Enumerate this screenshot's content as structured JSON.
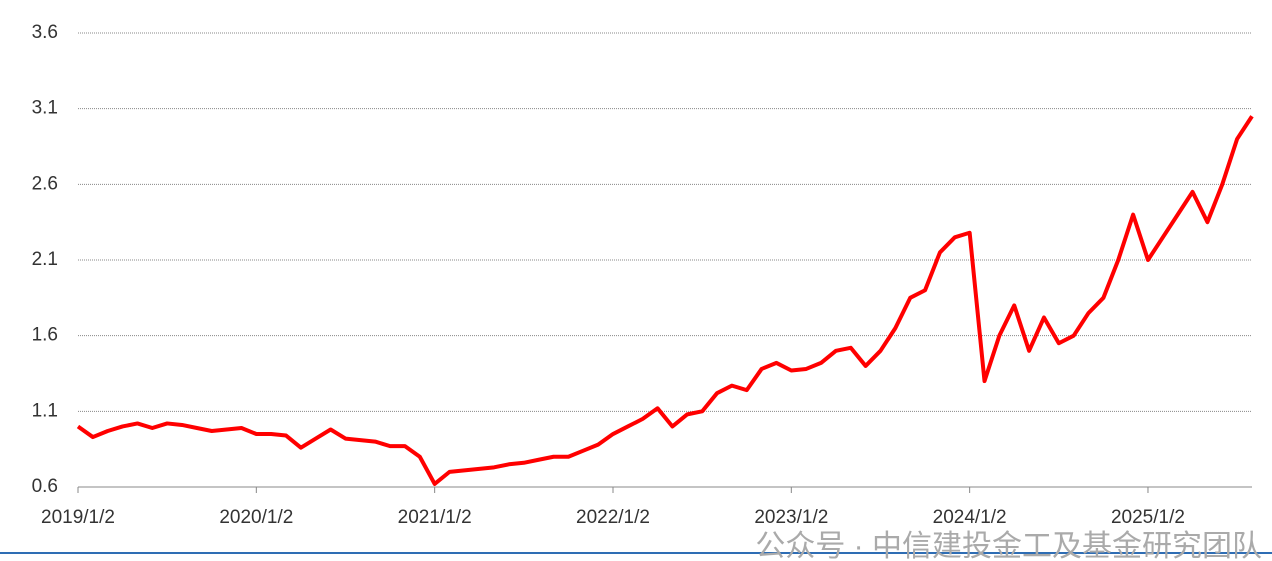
{
  "chart_data": {
    "type": "line",
    "categories": [
      "2019/1/2",
      null,
      null,
      null,
      null,
      null,
      null,
      null,
      null,
      null,
      null,
      null,
      "2020/1/2",
      null,
      null,
      null,
      null,
      null,
      null,
      null,
      null,
      null,
      null,
      null,
      "2021/1/2",
      null,
      null,
      null,
      null,
      null,
      null,
      null,
      null,
      null,
      null,
      null,
      "2022/1/2",
      null,
      null,
      null,
      null,
      null,
      null,
      null,
      null,
      null,
      null,
      null,
      "2023/1/2",
      null,
      null,
      null,
      null,
      null,
      null,
      null,
      null,
      null,
      null,
      null,
      "2024/1/2",
      null,
      null,
      null,
      null,
      null,
      null,
      null,
      null,
      null,
      null,
      null,
      "2025/1/2",
      null,
      null,
      null,
      null,
      null,
      null,
      null
    ],
    "series": [
      {
        "color": "#ff0000",
        "values": [
          1.0,
          0.93,
          0.97,
          1.0,
          1.02,
          0.99,
          1.02,
          1.01,
          0.99,
          0.97,
          0.98,
          0.99,
          0.95,
          0.95,
          0.94,
          0.86,
          0.92,
          0.98,
          0.92,
          0.91,
          0.9,
          0.87,
          0.87,
          0.8,
          0.62,
          0.7,
          0.71,
          0.72,
          0.73,
          0.75,
          0.76,
          0.78,
          0.8,
          0.8,
          0.84,
          0.88,
          0.95,
          1.0,
          1.05,
          1.12,
          1.0,
          1.08,
          1.1,
          1.22,
          1.27,
          1.24,
          1.38,
          1.42,
          1.37,
          1.38,
          1.42,
          1.5,
          1.52,
          1.4,
          1.5,
          1.65,
          1.85,
          1.9,
          2.15,
          2.25,
          2.28,
          1.3,
          1.6,
          1.8,
          1.5,
          1.72,
          1.55,
          1.6,
          1.75,
          1.85,
          2.1,
          2.4,
          2.1,
          2.25,
          2.4,
          2.55,
          2.35,
          2.6,
          2.9,
          3.05
        ]
      }
    ],
    "ylim": [
      0.6,
      3.6
    ],
    "yticks": [
      0.6,
      1.1,
      1.6,
      2.1,
      2.6,
      3.1,
      3.6
    ],
    "grid": true,
    "watermark": "公众号 · 中信建投金工及基金研究团队"
  }
}
